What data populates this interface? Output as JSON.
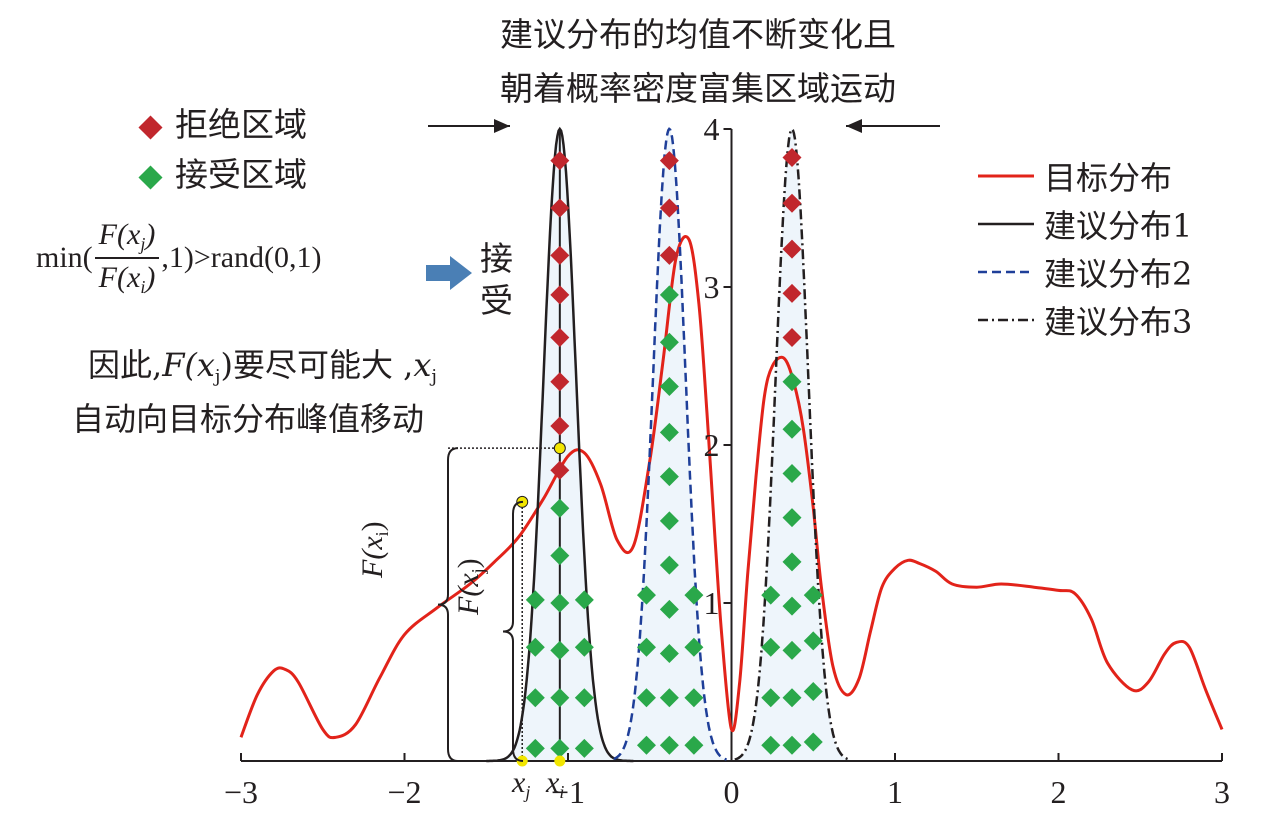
{
  "annotation": {
    "title_line1": "建议分布的均值不断变化且",
    "title_line2": "朝着概率密度富集区域运动",
    "reject_label": "拒绝区域",
    "accept_label": "接受区域",
    "formula_prefix": "min(",
    "formula_num": "F(x",
    "formula_num_sub": "j",
    "formula_den": "F(x",
    "formula_den_sub": "i",
    "formula_close": ")",
    "formula_suffix": ",1)>rand(0,1)",
    "accept_char1": "接",
    "accept_char2": "受",
    "explain_line1_a": "因此,",
    "explain_line1_f": "F(x",
    "explain_line1_sub": "j",
    "explain_line1_b": ")要尽可能大 ,",
    "explain_line1_x": "x",
    "explain_line1_xsub": "j",
    "explain_line2": "自动向目标分布峰值移动",
    "brace_label_i": "F(x",
    "brace_label_i_sub": "i",
    "brace_label_j": "F(x",
    "brace_label_j_sub": "j",
    "x_label_j": "x",
    "x_label_j_sub": "j",
    "x_label_i": "x",
    "x_label_i_sub": "i"
  },
  "colors": {
    "target": "#e2231a",
    "proposal1": "#231f20",
    "proposal2": "#1f3f99",
    "proposal3": "#231f20",
    "reject": "#c1272d",
    "accept": "#2aa84a",
    "accept_arrow": "#4a7fb5",
    "marker_point": "#f2e600"
  },
  "chart_data": {
    "type": "line",
    "xlim": [
      -3,
      3
    ],
    "ylim": [
      0,
      4
    ],
    "xticks": [
      -3,
      -2,
      -1,
      0,
      1,
      2,
      3
    ],
    "yticks": [
      1,
      2,
      3,
      4
    ],
    "grid": false,
    "legend_position": "top-right",
    "series": [
      {
        "name": "目标分布",
        "style": "solid",
        "x": [
          -3.0,
          -2.9,
          -2.8,
          -2.73,
          -2.65,
          -2.5,
          -2.42,
          -2.3,
          -2.15,
          -2.0,
          -1.8,
          -1.6,
          -1.45,
          -1.3,
          -1.15,
          -1.0,
          -0.9,
          -0.8,
          -0.7,
          -0.6,
          -0.5,
          -0.42,
          -0.34,
          -0.26,
          -0.2,
          -0.15,
          -0.1,
          -0.06,
          0.0,
          0.05,
          0.1,
          0.15,
          0.2,
          0.25,
          0.32,
          0.38,
          0.44,
          0.5,
          0.55,
          0.62,
          0.7,
          0.78,
          0.85,
          0.92,
          1.0,
          1.08,
          1.15,
          1.25,
          1.35,
          1.5,
          1.65,
          1.85,
          2.0,
          2.1,
          2.2,
          2.3,
          2.45,
          2.55,
          2.65,
          2.72,
          2.8,
          2.9,
          3.0
        ],
        "y": [
          0.15,
          0.42,
          0.57,
          0.58,
          0.5,
          0.2,
          0.15,
          0.23,
          0.53,
          0.8,
          0.97,
          1.12,
          1.26,
          1.42,
          1.66,
          1.93,
          1.95,
          1.75,
          1.4,
          1.36,
          1.9,
          2.52,
          3.18,
          3.3,
          2.9,
          2.2,
          1.4,
          0.8,
          0.2,
          0.5,
          1.2,
          1.8,
          2.3,
          2.5,
          2.55,
          2.4,
          2.1,
          1.6,
          1.1,
          0.6,
          0.42,
          0.52,
          0.82,
          1.1,
          1.22,
          1.27,
          1.25,
          1.2,
          1.12,
          1.1,
          1.12,
          1.1,
          1.08,
          1.06,
          0.9,
          0.62,
          0.45,
          0.5,
          0.68,
          0.75,
          0.72,
          0.45,
          0.2
        ]
      },
      {
        "name": "建议分布1",
        "style": "solid",
        "mean": -1.05,
        "sd": 0.1,
        "peak": 4.0,
        "range": [
          -1.5,
          -0.6
        ]
      },
      {
        "name": "建议分布2",
        "style": "dashed",
        "mean": -0.38,
        "sd": 0.1,
        "peak": 4.0,
        "range": [
          -0.72,
          -0.03
        ]
      },
      {
        "name": "建议分布3",
        "style": "dashdot",
        "mean": 0.37,
        "sd": 0.1,
        "peak": 4.0,
        "range": [
          0.02,
          0.72
        ]
      }
    ],
    "reject_points": [
      {
        "x": -1.05,
        "y": 3.8
      },
      {
        "x": -1.05,
        "y": 3.5
      },
      {
        "x": -1.05,
        "y": 3.2
      },
      {
        "x": -1.05,
        "y": 2.95
      },
      {
        "x": -1.05,
        "y": 2.68
      },
      {
        "x": -1.05,
        "y": 2.4
      },
      {
        "x": -1.05,
        "y": 2.12
      },
      {
        "x": -1.05,
        "y": 1.84
      },
      {
        "x": -0.38,
        "y": 3.8
      },
      {
        "x": -0.38,
        "y": 3.5
      },
      {
        "x": -0.38,
        "y": 3.2
      },
      {
        "x": 0.37,
        "y": 3.82
      },
      {
        "x": 0.37,
        "y": 3.53
      },
      {
        "x": 0.37,
        "y": 3.24
      },
      {
        "x": 0.37,
        "y": 2.96
      },
      {
        "x": 0.37,
        "y": 2.68
      }
    ],
    "accept_points": [
      {
        "x": -1.05,
        "y": 1.6
      },
      {
        "x": -1.05,
        "y": 1.3
      },
      {
        "x": -1.05,
        "y": 1.0
      },
      {
        "x": -1.05,
        "y": 0.7
      },
      {
        "x": -1.05,
        "y": 0.4
      },
      {
        "x": -1.05,
        "y": 0.08
      },
      {
        "x": -1.2,
        "y": 1.02
      },
      {
        "x": -1.2,
        "y": 0.72
      },
      {
        "x": -1.2,
        "y": 0.4
      },
      {
        "x": -1.2,
        "y": 0.08
      },
      {
        "x": -0.9,
        "y": 1.02
      },
      {
        "x": -0.9,
        "y": 0.72
      },
      {
        "x": -0.9,
        "y": 0.4
      },
      {
        "x": -0.9,
        "y": 0.08
      },
      {
        "x": -0.38,
        "y": 2.95
      },
      {
        "x": -0.38,
        "y": 2.65
      },
      {
        "x": -0.38,
        "y": 2.37
      },
      {
        "x": -0.38,
        "y": 2.08
      },
      {
        "x": -0.38,
        "y": 1.8
      },
      {
        "x": -0.38,
        "y": 1.52
      },
      {
        "x": -0.38,
        "y": 1.24
      },
      {
        "x": -0.38,
        "y": 0.96
      },
      {
        "x": -0.38,
        "y": 0.68
      },
      {
        "x": -0.38,
        "y": 0.4
      },
      {
        "x": -0.38,
        "y": 0.1
      },
      {
        "x": -0.52,
        "y": 1.05
      },
      {
        "x": -0.52,
        "y": 0.72
      },
      {
        "x": -0.52,
        "y": 0.4
      },
      {
        "x": -0.52,
        "y": 0.1
      },
      {
        "x": -0.23,
        "y": 1.05
      },
      {
        "x": -0.23,
        "y": 0.72
      },
      {
        "x": -0.23,
        "y": 0.4
      },
      {
        "x": -0.23,
        "y": 0.1
      },
      {
        "x": 0.37,
        "y": 2.4
      },
      {
        "x": 0.37,
        "y": 2.1
      },
      {
        "x": 0.37,
        "y": 1.82
      },
      {
        "x": 0.37,
        "y": 1.54
      },
      {
        "x": 0.37,
        "y": 1.26
      },
      {
        "x": 0.37,
        "y": 0.98
      },
      {
        "x": 0.37,
        "y": 0.7
      },
      {
        "x": 0.37,
        "y": 0.4
      },
      {
        "x": 0.37,
        "y": 0.1
      },
      {
        "x": 0.24,
        "y": 1.05
      },
      {
        "x": 0.24,
        "y": 0.72
      },
      {
        "x": 0.24,
        "y": 0.4
      },
      {
        "x": 0.24,
        "y": 0.1
      },
      {
        "x": 0.5,
        "y": 1.05
      },
      {
        "x": 0.5,
        "y": 0.76
      },
      {
        "x": 0.5,
        "y": 0.44
      },
      {
        "x": 0.5,
        "y": 0.12
      }
    ],
    "highlight_points": [
      {
        "x": -1.05,
        "y": 1.98
      },
      {
        "x": -1.28,
        "y": 1.64
      },
      {
        "x": -1.05,
        "y": 0.0
      },
      {
        "x": -1.28,
        "y": 0.0
      }
    ]
  }
}
